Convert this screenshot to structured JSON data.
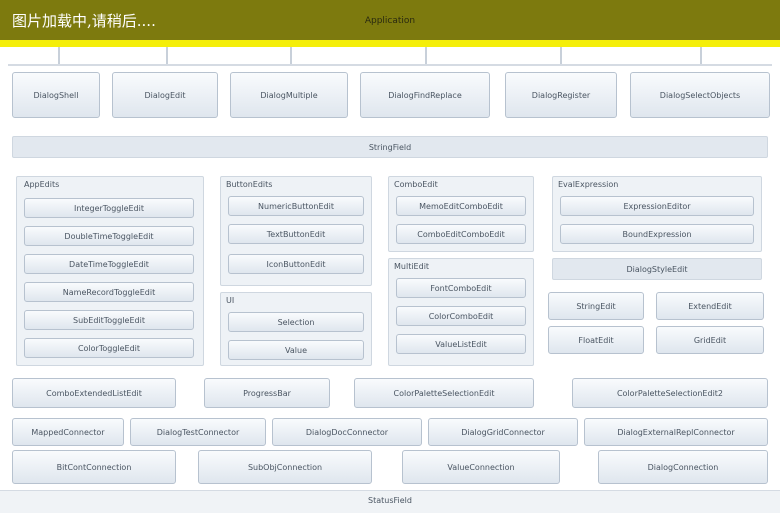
{
  "header": {
    "loading_text": "图片加载中,请稍后....",
    "title": "Application"
  },
  "top_buttons": [
    "DialogShell",
    "DialogEdit",
    "DialogMultiple",
    "DialogFindReplace",
    "DialogRegister",
    "DialogSelectObjects"
  ],
  "wide_bar": "StringField",
  "panel1": {
    "title": "AppEdits",
    "items": [
      "IntegerToggleEdit",
      "DoubleTimeToggleEdit",
      "DateTimeToggleEdit",
      "NameRecordToggleEdit",
      "SubEditToggleEdit",
      "ColorToggleEdit"
    ]
  },
  "panel2": {
    "title": "ButtonEdits",
    "items": [
      "NumericButtonEdit",
      "TextButtonEdit",
      "IconButtonEdit"
    ]
  },
  "panel2b": {
    "title": "UI",
    "items": [
      "Selection",
      "Value"
    ]
  },
  "panel3": {
    "title": "ComboEdit",
    "items": [
      "MemoEditComboEdit",
      "ComboEditComboEdit"
    ]
  },
  "panel4": {
    "title": "MultiEdit",
    "items": [
      "FontComboEdit",
      "ColorComboEdit",
      "ValueListEdit"
    ]
  },
  "panel5": {
    "title": "EvalExpression",
    "items": [
      "ExpressionEditor",
      "BoundExpression"
    ],
    "extra": "DialogStyleEdit"
  },
  "small_buttons": [
    "StringEdit",
    "ExtendEdit",
    "FloatEdit",
    "GridEdit"
  ],
  "row_a": [
    "ComboExtendedListEdit",
    "ProgressBar",
    "ColorPaletteSelectionEdit",
    "ColorPaletteSelectionEdit2"
  ],
  "row_b": [
    "MappedConnector",
    "DialogTestConnector",
    "DialogDocConnector",
    "DialogGridConnector",
    "DialogExternalReplConnector"
  ],
  "row_c": [
    "BitContConnection",
    "SubObjConnection",
    "ValueConnection",
    "DialogConnection"
  ],
  "status": "StatusField"
}
